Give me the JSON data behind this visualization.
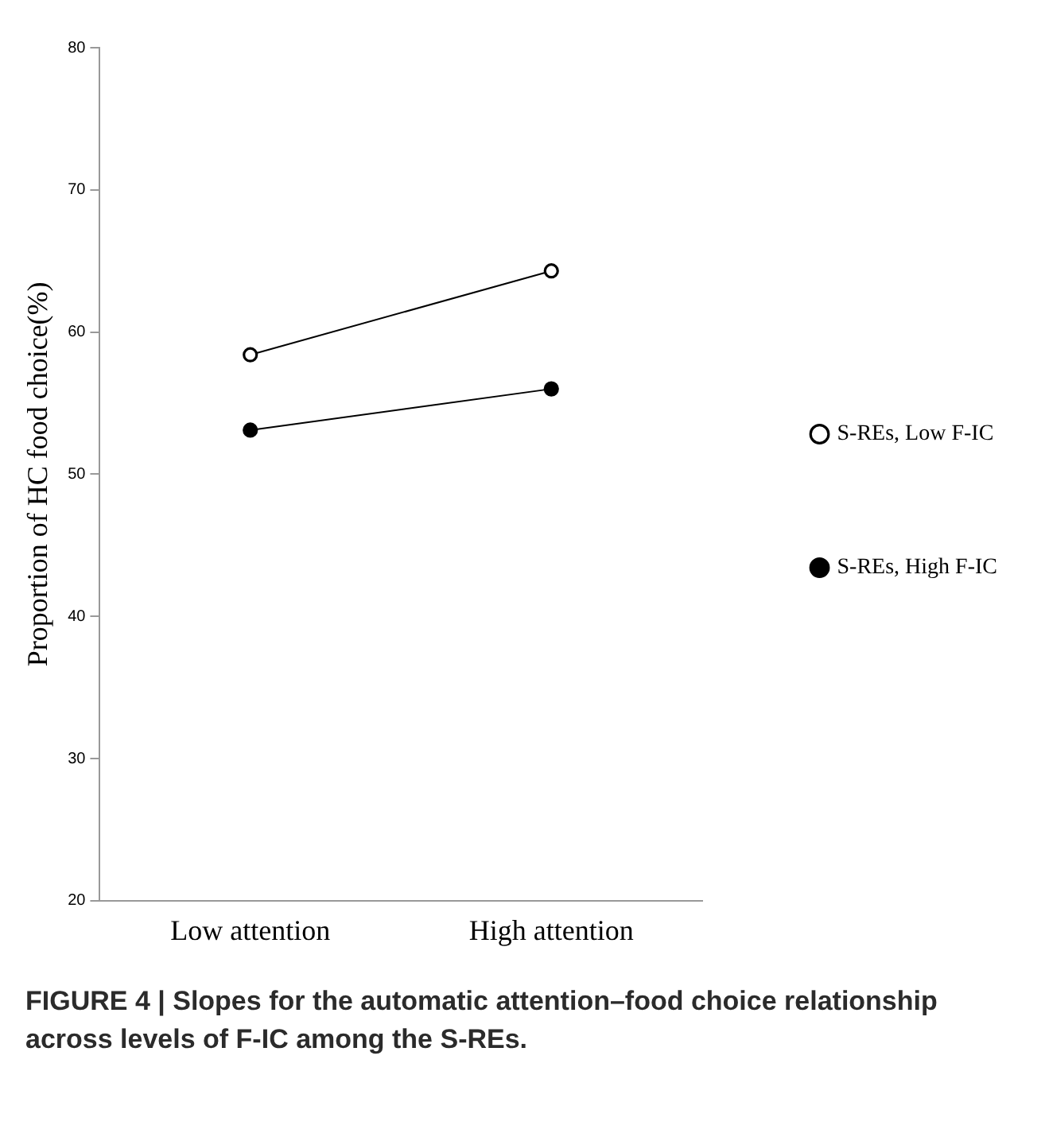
{
  "chart_data": {
    "type": "line",
    "ylabel": "Proportion of HC food choice(%)",
    "categories": [
      "Low attention",
      "High attention"
    ],
    "series": [
      {
        "name": "S-REs, Low F-IC",
        "color": "#000000",
        "values": [
          58.4,
          64.3
        ]
      },
      {
        "name": "S-REs, High F-IC",
        "color": "#000000",
        "values": [
          53.1,
          56.0
        ]
      }
    ],
    "ylim": [
      20,
      80
    ],
    "yticks": [
      20,
      30,
      40,
      50,
      60,
      70,
      80
    ],
    "grid": false,
    "legend": "right",
    "marker": "circle",
    "annotations": [
      "FIGURE 4 | Slopes for the automatic attention–food choice relationship across levels of F-IC among the S-REs."
    ]
  }
}
